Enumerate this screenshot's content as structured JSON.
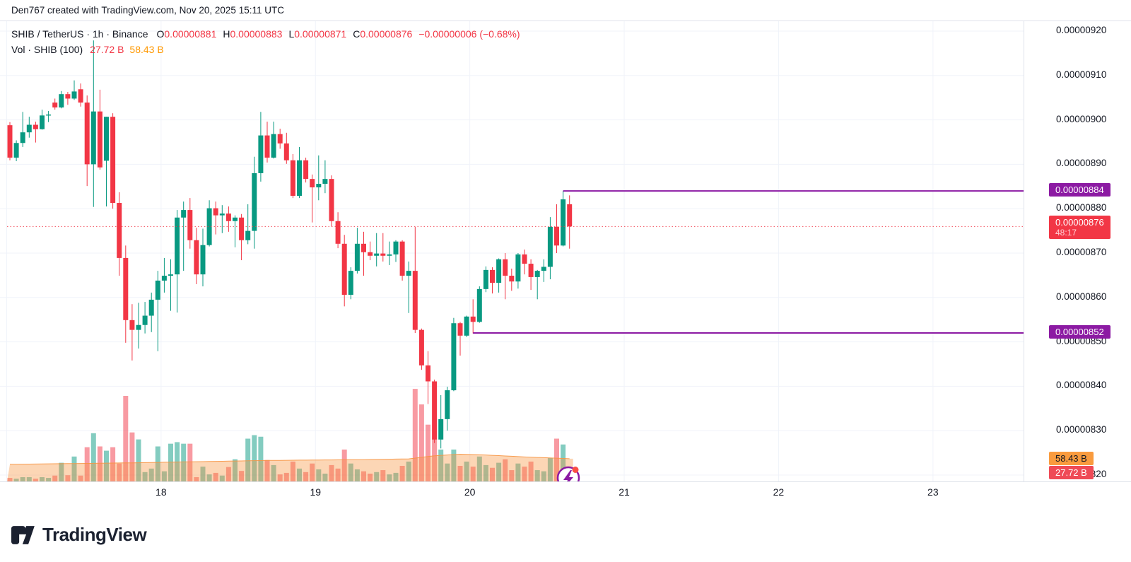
{
  "attribution": "Den767 created with TradingView.com, Nov 20, 2025 15:11 UTC",
  "legend": {
    "symbol": "SHIB / TetherUS · 1h · Binance",
    "ohlc": [
      {
        "letter": "O",
        "value": "0.00000881"
      },
      {
        "letter": "H",
        "value": "0.00000883"
      },
      {
        "letter": "L",
        "value": "0.00000871"
      },
      {
        "letter": "C",
        "value": "0.00000876"
      }
    ],
    "change": "−0.00000006 (−0.68%)",
    "volume_label": "Vol · SHIB (100)",
    "volume_current": "27.72 B",
    "volume_ma": "58.43 B"
  },
  "price_axis": {
    "tick_labels": [
      "0.00000920",
      "0.00000910",
      "0.00000900",
      "0.00000890",
      "0.00000880",
      "0.00000870",
      "0.00000860",
      "0.00000850",
      "0.00000840",
      "0.00000830",
      "0.00000820"
    ],
    "tick_values": [
      920,
      910,
      900,
      890,
      880,
      870,
      860,
      850,
      840,
      830,
      820
    ],
    "level_badges": [
      {
        "label": "0.00000884",
        "price": 884
      },
      {
        "label": "0.00000852",
        "price": 852
      }
    ],
    "last_price_badge": {
      "label": "0.00000876",
      "countdown": "48:17",
      "price": 876
    },
    "volume_badges": {
      "ma": "58.43 B",
      "current": "27.72 B"
    }
  },
  "time_axis": {
    "labels": [
      "18",
      "19",
      "20",
      "21",
      "22",
      "23"
    ]
  },
  "footer": {
    "logo_text": "TradingView"
  },
  "colors": {
    "up": "#089981",
    "down": "#f23645",
    "purple_level": "#8c1aa3",
    "volume_ma_orange": "#f79340",
    "grid": "#f0f3fa",
    "badge_orange": "#f99b3e"
  },
  "chart_data": {
    "type": "candlestick+volume",
    "title": "SHIB / TetherUS · 1h · Binance",
    "price_unit": "1e-8 (values shown ×10⁻⁸)",
    "ylim": [
      820,
      920
    ],
    "y_ticks": [
      820,
      830,
      840,
      850,
      860,
      870,
      880,
      890,
      900,
      910,
      920
    ],
    "x_day_labels": [
      "18",
      "19",
      "20",
      "21",
      "22",
      "23"
    ],
    "interval": "1h",
    "grid": true,
    "last_close": 876,
    "horizontal_levels": [
      {
        "price": 884,
        "start_index": 86,
        "label": "0.00000884"
      },
      {
        "price": 852,
        "start_index": 72,
        "label": "0.00000852"
      }
    ],
    "candles": [
      [
        898.8,
        899.5,
        890.9,
        891.5
      ],
      [
        891.5,
        895.4,
        890.7,
        894.8
      ],
      [
        894.8,
        901.8,
        893.9,
        897.2
      ],
      [
        897.2,
        900.7,
        896.0,
        898.9
      ],
      [
        898.9,
        899.6,
        894.9,
        897.9
      ],
      [
        897.9,
        902.3,
        897.8,
        901.0
      ],
      [
        901.0,
        902.0,
        899.5,
        901.2
      ],
      [
        903.9,
        904.8,
        902.3,
        902.8
      ],
      [
        902.8,
        906.5,
        902.6,
        905.8
      ],
      [
        905.8,
        906.3,
        903.4,
        904.8
      ],
      [
        904.8,
        908.9,
        904.5,
        906.4
      ],
      [
        906.9,
        908.2,
        903.0,
        903.9
      ],
      [
        903.9,
        905.5,
        885.1,
        890.0
      ],
      [
        890.0,
        917.9,
        880.4,
        901.9
      ],
      [
        901.9,
        906.8,
        888.8,
        889.3
      ],
      [
        890.8,
        900.7,
        880.5,
        900.7
      ],
      [
        900.7,
        901.5,
        880.0,
        881.3
      ],
      [
        881.3,
        883.7,
        864.9,
        868.9
      ],
      [
        868.9,
        871.7,
        849.8,
        854.9
      ],
      [
        854.9,
        858.5,
        845.8,
        852.7
      ],
      [
        852.7,
        858.8,
        848.5,
        853.8
      ],
      [
        853.8,
        859.0,
        851.9,
        855.9
      ],
      [
        855.9,
        861.1,
        852.2,
        859.5
      ],
      [
        859.5,
        866.0,
        847.9,
        863.8
      ],
      [
        863.8,
        868.9,
        861.1,
        864.9
      ],
      [
        864.9,
        868.6,
        857.0,
        865.2
      ],
      [
        865.2,
        879.7,
        856.6,
        878.0
      ],
      [
        878.0,
        881.6,
        866.0,
        879.7
      ],
      [
        879.7,
        882.4,
        871.0,
        872.9
      ],
      [
        872.9,
        875.7,
        863.0,
        865.2
      ],
      [
        865.2,
        875.5,
        862.5,
        871.8
      ],
      [
        871.8,
        881.9,
        871.5,
        880.1
      ],
      [
        880.1,
        881.6,
        874.2,
        878.5
      ],
      [
        878.5,
        880.8,
        874.5,
        878.9
      ],
      [
        878.9,
        880.5,
        874.8,
        877.2
      ],
      [
        877.2,
        878.5,
        871.3,
        878.0
      ],
      [
        878.0,
        878.8,
        868.4,
        872.9
      ],
      [
        872.9,
        881.0,
        872.0,
        875.0
      ],
      [
        875.0,
        891.7,
        871.0,
        888.0
      ],
      [
        888.0,
        901.8,
        886.1,
        896.5
      ],
      [
        896.5,
        899.6,
        890.4,
        891.5
      ],
      [
        891.5,
        899.6,
        891.3,
        896.8
      ],
      [
        896.8,
        898.0,
        893.5,
        894.7
      ],
      [
        894.7,
        897.1,
        890.1,
        890.9
      ],
      [
        890.9,
        892.3,
        882.4,
        882.9
      ],
      [
        882.9,
        893.9,
        882.4,
        890.9
      ],
      [
        890.9,
        891.5,
        885.9,
        886.7
      ],
      [
        886.7,
        887.7,
        876.9,
        884.8
      ],
      [
        884.8,
        892.0,
        881.9,
        885.6
      ],
      [
        885.6,
        890.9,
        883.5,
        886.7
      ],
      [
        886.7,
        887.5,
        876.0,
        877.2
      ],
      [
        877.2,
        879.2,
        871.1,
        872.1
      ],
      [
        872.1,
        874.1,
        858.0,
        860.6
      ],
      [
        860.6,
        866.8,
        859.6,
        866.0
      ],
      [
        866.0,
        875.7,
        865.4,
        872.1
      ],
      [
        872.1,
        874.8,
        864.9,
        870.2
      ],
      [
        870.2,
        872.6,
        868.4,
        869.4
      ],
      [
        869.4,
        874.5,
        867.0,
        869.9
      ],
      [
        869.9,
        874.5,
        868.1,
        869.4
      ],
      [
        869.4,
        872.6,
        867.3,
        869.7
      ],
      [
        869.7,
        872.9,
        868.0,
        872.6
      ],
      [
        872.6,
        872.9,
        863.8,
        864.9
      ],
      [
        864.9,
        868.1,
        856.5,
        866.0
      ],
      [
        866.0,
        875.9,
        852.0,
        852.7
      ],
      [
        852.7,
        853.0,
        843.7,
        844.7
      ],
      [
        844.7,
        847.9,
        836.0,
        841.1
      ],
      [
        841.1,
        841.5,
        827.2,
        828.0
      ],
      [
        828.0,
        838.0,
        826.0,
        832.6
      ],
      [
        832.6,
        839.9,
        830.0,
        839.1
      ],
      [
        839.1,
        855.4,
        838.9,
        854.2
      ],
      [
        854.2,
        854.5,
        846.9,
        851.4
      ],
      [
        851.4,
        855.9,
        851.1,
        855.7
      ],
      [
        855.7,
        859.6,
        851.9,
        854.5
      ],
      [
        854.5,
        862.5,
        854.3,
        861.9
      ],
      [
        861.9,
        867.0,
        861.2,
        866.2
      ],
      [
        866.2,
        866.8,
        860.9,
        863.3
      ],
      [
        863.3,
        868.8,
        861.1,
        868.6
      ],
      [
        868.6,
        870.0,
        859.6,
        864.9
      ],
      [
        864.9,
        866.5,
        861.5,
        863.6
      ],
      [
        863.6,
        870.0,
        862.0,
        869.7
      ],
      [
        869.7,
        870.8,
        865.2,
        867.6
      ],
      [
        867.6,
        868.6,
        861.7,
        864.6
      ],
      [
        864.6,
        866.2,
        859.6,
        866.0
      ],
      [
        866.0,
        868.6,
        863.5,
        866.9
      ],
      [
        866.9,
        878.1,
        864.1,
        875.9
      ],
      [
        875.9,
        881.0,
        870.0,
        871.7
      ],
      [
        871.7,
        884.0,
        871.5,
        882.1
      ],
      [
        881.0,
        883.0,
        871.0,
        876.0
      ]
    ],
    "volumes_billions": [
      9,
      7,
      11,
      11,
      7,
      11,
      9,
      15,
      48,
      16,
      64,
      15,
      88,
      124,
      90,
      79,
      88,
      46,
      220,
      126,
      108,
      24,
      33,
      90,
      26,
      97,
      101,
      97,
      97,
      11,
      38,
      18,
      22,
      15,
      37,
      57,
      27,
      110,
      119,
      115,
      55,
      42,
      18,
      22,
      51,
      33,
      24,
      46,
      31,
      20,
      42,
      33,
      82,
      46,
      31,
      26,
      20,
      24,
      29,
      18,
      22,
      40,
      51,
      238,
      198,
      146,
      110,
      82,
      46,
      82,
      40,
      51,
      38,
      64,
      42,
      35,
      48,
      57,
      29,
      46,
      38,
      51,
      29,
      26,
      60,
      110,
      95,
      27.72
    ],
    "volume_ma_points": [
      [
        0,
        44
      ],
      [
        20,
        48
      ],
      [
        40,
        54
      ],
      [
        55,
        56
      ],
      [
        62,
        58
      ],
      [
        66,
        66
      ],
      [
        70,
        70
      ],
      [
        74,
        68
      ],
      [
        80,
        63
      ],
      [
        87,
        58.43
      ]
    ],
    "volume_ma_current": 58.43,
    "volume_current": 27.72
  }
}
